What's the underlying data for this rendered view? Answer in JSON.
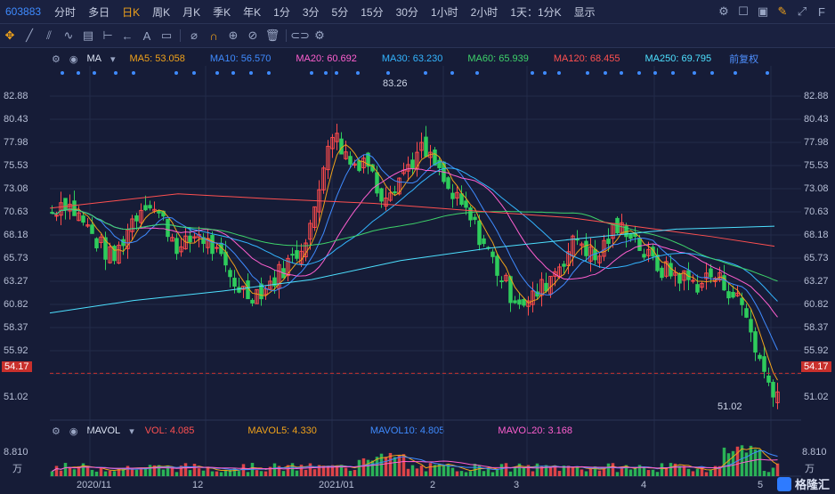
{
  "topbar": {
    "code": "603883",
    "periods": [
      "分时",
      "多日",
      "日K",
      "周K",
      "月K",
      "季K",
      "年K",
      "1分",
      "3分",
      "5分",
      "15分",
      "30分",
      "1小时",
      "2小时"
    ],
    "selected_period": "日K",
    "interval_label": "1天：1分K",
    "display_label": "显示"
  },
  "indicators": {
    "ma_name": "MA",
    "ma5": "MA5: 53.058",
    "ma10": "MA10: 56.570",
    "ma20": "MA20: 60.692",
    "ma30": "MA30: 63.230",
    "ma60": "MA60: 65.939",
    "ma120": "MA120: 68.455",
    "ma250": "MA250: 69.795",
    "adjust": "前复权",
    "colors": {
      "ma5": "#f0a21a",
      "ma10": "#3f8bff",
      "ma20": "#ff5fd0",
      "ma30": "#33b5ff",
      "ma60": "#3ed26a",
      "ma120": "#ff5050",
      "ma250": "#4de0ff"
    }
  },
  "volume": {
    "name": "MAVOL",
    "vol": "VOL: 4.085",
    "mavol5": "MAVOL5: 4.330",
    "mavol10": "MAVOL10: 4.805",
    "mavol20": "MAVOL20: 3.168",
    "top_label": "8.810",
    "unit": "万"
  },
  "axis": {
    "prices": [
      "82.88",
      "80.43",
      "77.98",
      "75.53",
      "73.08",
      "70.63",
      "68.18",
      "65.73",
      "63.27",
      "60.82",
      "58.37",
      "55.92",
      "51.02"
    ],
    "current_price": "54.17",
    "dates": [
      "2020/11",
      "12",
      "2021/01",
      "2",
      "3",
      "4",
      "5"
    ]
  },
  "annotations": {
    "high": "83.26",
    "low": "51.02"
  },
  "logo": "格隆汇",
  "chart_data": {
    "type": "candlestick",
    "x": [
      "2020/11",
      "12",
      "2021/01",
      "2",
      "3",
      "4",
      "5"
    ],
    "ylim": [
      50,
      84
    ],
    "high": 83.26,
    "low": 51.02,
    "last": 54.17
  }
}
